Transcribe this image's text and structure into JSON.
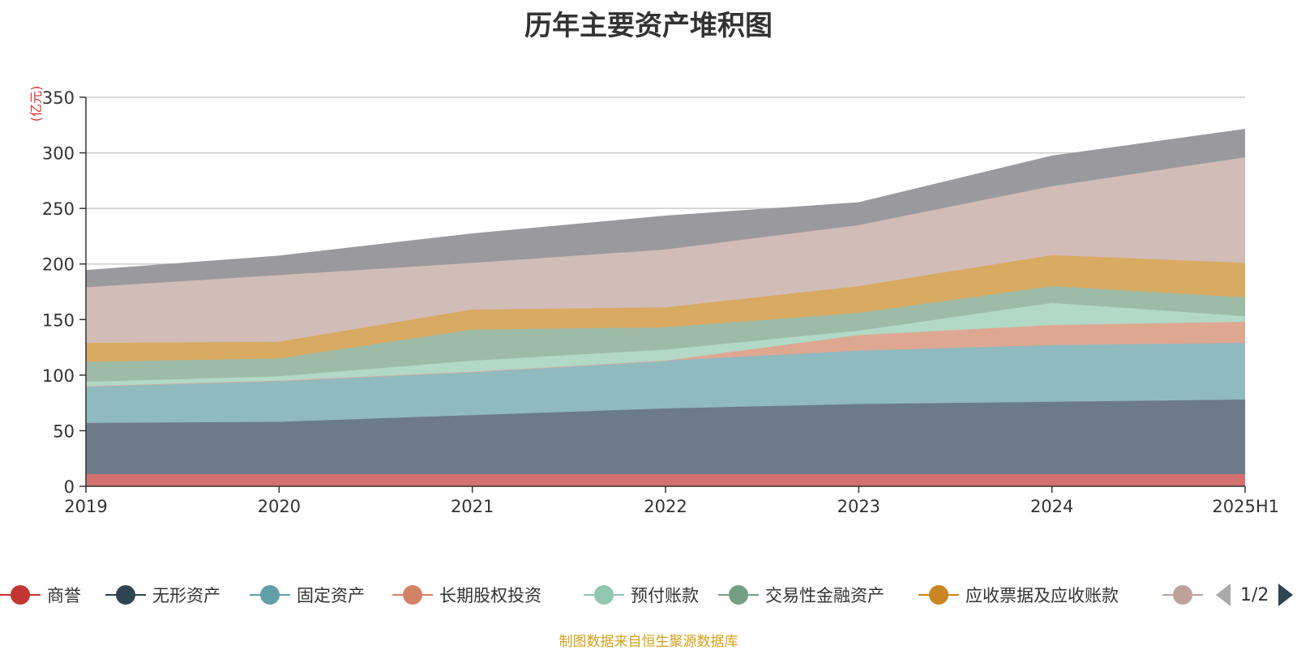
{
  "chart_data": {
    "type": "area",
    "stacked": true,
    "title": "历年主要资产堆积图",
    "unit_label": "(亿元)",
    "categories": [
      "2019",
      "2020",
      "2021",
      "2022",
      "2023",
      "2024",
      "2025H1"
    ],
    "ylim": [
      0,
      350
    ],
    "yticks": [
      0,
      50,
      100,
      150,
      200,
      250,
      300,
      350
    ],
    "grid": true,
    "series": [
      {
        "name": "商誉",
        "color": "#c23531",
        "fill": "#d47070",
        "values": [
          11,
          11,
          11,
          11,
          11,
          11,
          11
        ]
      },
      {
        "name": "无形资产",
        "color": "#2f4554",
        "fill": "#6c7b87",
        "values": [
          46,
          47,
          53,
          59,
          63,
          65,
          67
        ]
      },
      {
        "name": "固定资产",
        "color": "#61a0a8",
        "fill": "#8fbac0",
        "values": [
          33,
          37,
          39,
          43,
          48,
          51,
          51
        ]
      },
      {
        "name": "长期股权投资",
        "color": "#d48265",
        "fill": "#dea792",
        "values": [
          0,
          0,
          0,
          0,
          14,
          18,
          19
        ]
      },
      {
        "name": "预付账款",
        "color": "#91c7ae",
        "fill": "#b2d8c6",
        "values": [
          4,
          4,
          10,
          10,
          4,
          20,
          5
        ]
      },
      {
        "name": "交易性金融资产",
        "color": "#749f83",
        "fill": "#9dbba7",
        "values": [
          18,
          16,
          28,
          20,
          16,
          15,
          17
        ]
      },
      {
        "name": "应收票据及应收账款",
        "color": "#ca8622",
        "fill": "#d9aa62",
        "values": [
          17,
          15,
          18,
          18,
          24,
          28,
          31
        ]
      },
      {
        "name": "",
        "color": "#bda29a",
        "fill": "#d1bcb8",
        "values": [
          50,
          60,
          42,
          52,
          55,
          62,
          95
        ]
      },
      {
        "name": "",
        "color": "#6e7074",
        "fill": "#9a9a9e",
        "values": [
          15,
          17,
          26,
          30,
          20,
          27,
          25
        ]
      }
    ],
    "legend_placement": "bottom"
  },
  "legend": {
    "items": [
      {
        "label": "商誉",
        "color": "#c23531"
      },
      {
        "label": "无形资产",
        "color": "#2f4554"
      },
      {
        "label": "固定资产",
        "color": "#61a0a8"
      },
      {
        "label": "长期股权投资",
        "color": "#d48265"
      },
      {
        "label": "预付账款",
        "color": "#91c7ae"
      },
      {
        "label": "交易性金融资产",
        "color": "#749f83"
      },
      {
        "label": "应收票据及应收账款",
        "color": "#ca8622"
      },
      {
        "label": "",
        "color": "#bda29a"
      }
    ],
    "page_indicator": "1/2"
  },
  "footer": {
    "source_note": "制图数据来自恒生聚源数据库"
  }
}
